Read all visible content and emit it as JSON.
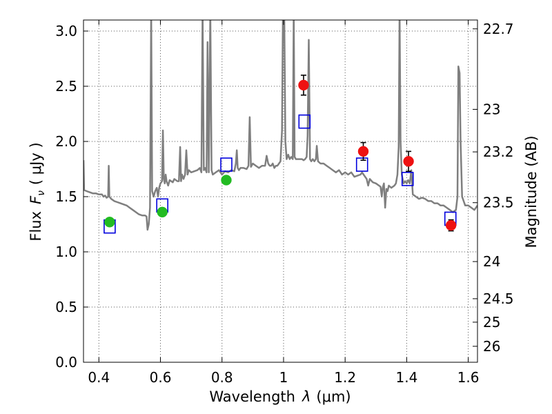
{
  "chart_data": {
    "type": "scatter",
    "title": "",
    "xlabel_pre": "Wavelength",
    "xlabel_lambda": "λ",
    "xlabel_unit": "(μm)",
    "ylabel_pre": "Flux",
    "ylabel_math": "F",
    "ylabel_sub": "ν",
    "ylabel_unit": "( μJy )",
    "ylabel_right": "Magnitude (AB)",
    "xlim": [
      0.35,
      1.63
    ],
    "ylim": [
      0.0,
      3.1
    ],
    "grid": true,
    "legend": "none",
    "x_ticks": [
      {
        "value": 0.4,
        "label": "0.4"
      },
      {
        "value": 0.6,
        "label": "0.6"
      },
      {
        "value": 0.8,
        "label": "0.8"
      },
      {
        "value": 1.0,
        "label": "1"
      },
      {
        "value": 1.2,
        "label": "1.2"
      },
      {
        "value": 1.4,
        "label": "1.4"
      },
      {
        "value": 1.6,
        "label": "1.6"
      }
    ],
    "y_ticks": [
      {
        "value": 0.0,
        "label": "0.0"
      },
      {
        "value": 0.5,
        "label": "0.5"
      },
      {
        "value": 1.0,
        "label": "1.0"
      },
      {
        "value": 1.5,
        "label": "1.5"
      },
      {
        "value": 2.0,
        "label": "2.0"
      },
      {
        "value": 2.5,
        "label": "2.5"
      },
      {
        "value": 3.0,
        "label": "3.0"
      }
    ],
    "right_ticks": [
      {
        "mag": 22.7,
        "label": "22.7"
      },
      {
        "mag": 23.0,
        "label": "23"
      },
      {
        "mag": 23.2,
        "label": "23.2"
      },
      {
        "mag": 23.5,
        "label": "23.5"
      },
      {
        "mag": 24.0,
        "label": "24"
      },
      {
        "mag": 24.5,
        "label": "24.5"
      },
      {
        "mag": 25.0,
        "label": "25"
      },
      {
        "mag": 26.0,
        "label": "26"
      }
    ],
    "colors": {
      "spectrum": "#7f7f7f",
      "green_points": "#22bb22",
      "red_points": "#ee1111",
      "model_squares": "#0000dd",
      "grid": "#555555"
    },
    "series": [
      {
        "kind": "line",
        "color": "#7f7f7f",
        "points": [
          [
            0.35,
            1.83
          ],
          [
            0.352,
            1.56
          ],
          [
            0.36,
            1.55
          ],
          [
            0.37,
            1.54
          ],
          [
            0.38,
            1.53
          ],
          [
            0.39,
            1.53
          ],
          [
            0.4,
            1.52
          ],
          [
            0.41,
            1.52
          ],
          [
            0.415,
            1.5
          ],
          [
            0.42,
            1.51
          ],
          [
            0.425,
            1.49
          ],
          [
            0.43,
            1.5
          ],
          [
            0.432,
            1.78
          ],
          [
            0.434,
            1.5
          ],
          [
            0.44,
            1.48
          ],
          [
            0.45,
            1.46
          ],
          [
            0.46,
            1.45
          ],
          [
            0.47,
            1.44
          ],
          [
            0.48,
            1.43
          ],
          [
            0.49,
            1.42
          ],
          [
            0.5,
            1.4
          ],
          [
            0.51,
            1.38
          ],
          [
            0.52,
            1.36
          ],
          [
            0.53,
            1.34
          ],
          [
            0.54,
            1.33
          ],
          [
            0.55,
            1.33
          ],
          [
            0.555,
            1.32
          ],
          [
            0.558,
            1.2
          ],
          [
            0.562,
            1.25
          ],
          [
            0.566,
            1.4
          ],
          [
            0.57,
            3.2
          ],
          [
            0.573,
            1.55
          ],
          [
            0.578,
            1.5
          ],
          [
            0.583,
            1.55
          ],
          [
            0.588,
            1.58
          ],
          [
            0.592,
            1.5
          ],
          [
            0.596,
            1.58
          ],
          [
            0.6,
            1.62
          ],
          [
            0.605,
            1.64
          ],
          [
            0.608,
            2.1
          ],
          [
            0.611,
            1.66
          ],
          [
            0.614,
            1.62
          ],
          [
            0.617,
            1.7
          ],
          [
            0.62,
            1.64
          ],
          [
            0.625,
            1.6
          ],
          [
            0.63,
            1.65
          ],
          [
            0.64,
            1.63
          ],
          [
            0.645,
            1.66
          ],
          [
            0.65,
            1.65
          ],
          [
            0.655,
            1.64
          ],
          [
            0.66,
            1.64
          ],
          [
            0.664,
            1.95
          ],
          [
            0.667,
            1.64
          ],
          [
            0.67,
            1.7
          ],
          [
            0.675,
            1.66
          ],
          [
            0.68,
            1.7
          ],
          [
            0.684,
            1.92
          ],
          [
            0.688,
            1.7
          ],
          [
            0.692,
            1.74
          ],
          [
            0.7,
            1.72
          ],
          [
            0.71,
            1.73
          ],
          [
            0.72,
            1.74
          ],
          [
            0.728,
            1.76
          ],
          [
            0.733,
            1.72
          ],
          [
            0.737,
            3.2
          ],
          [
            0.741,
            1.74
          ],
          [
            0.745,
            1.76
          ],
          [
            0.75,
            1.72
          ],
          [
            0.753,
            2.9
          ],
          [
            0.757,
            1.72
          ],
          [
            0.762,
            3.2
          ],
          [
            0.766,
            1.74
          ],
          [
            0.77,
            1.7
          ],
          [
            0.78,
            1.72
          ],
          [
            0.79,
            1.74
          ],
          [
            0.8,
            1.7
          ],
          [
            0.81,
            1.73
          ],
          [
            0.82,
            1.72
          ],
          [
            0.83,
            1.74
          ],
          [
            0.84,
            1.73
          ],
          [
            0.845,
            1.8
          ],
          [
            0.848,
            1.92
          ],
          [
            0.851,
            1.76
          ],
          [
            0.855,
            1.74
          ],
          [
            0.86,
            1.76
          ],
          [
            0.87,
            1.76
          ],
          [
            0.88,
            1.75
          ],
          [
            0.886,
            1.78
          ],
          [
            0.89,
            2.22
          ],
          [
            0.894,
            1.77
          ],
          [
            0.9,
            1.8
          ],
          [
            0.91,
            1.78
          ],
          [
            0.92,
            1.76
          ],
          [
            0.93,
            1.78
          ],
          [
            0.94,
            1.78
          ],
          [
            0.945,
            1.87
          ],
          [
            0.95,
            1.8
          ],
          [
            0.955,
            1.78
          ],
          [
            0.96,
            1.78
          ],
          [
            0.965,
            1.8
          ],
          [
            0.97,
            1.76
          ],
          [
            0.975,
            1.78
          ],
          [
            0.98,
            1.78
          ],
          [
            0.985,
            1.8
          ],
          [
            0.99,
            1.82
          ],
          [
            0.995,
            2.1
          ],
          [
            0.998,
            3.2
          ],
          [
            1.002,
            3.2
          ],
          [
            1.006,
            2.0
          ],
          [
            1.01,
            1.84
          ],
          [
            1.015,
            1.88
          ],
          [
            1.02,
            1.84
          ],
          [
            1.025,
            1.86
          ],
          [
            1.03,
            1.84
          ],
          [
            1.033,
            3.2
          ],
          [
            1.036,
            1.86
          ],
          [
            1.04,
            1.84
          ],
          [
            1.05,
            1.84
          ],
          [
            1.06,
            1.84
          ],
          [
            1.065,
            1.83
          ],
          [
            1.07,
            1.84
          ],
          [
            1.075,
            1.86
          ],
          [
            1.078,
            2.05
          ],
          [
            1.082,
            2.92
          ],
          [
            1.086,
            1.84
          ],
          [
            1.09,
            1.82
          ],
          [
            1.095,
            1.84
          ],
          [
            1.1,
            1.82
          ],
          [
            1.105,
            1.84
          ],
          [
            1.108,
            1.96
          ],
          [
            1.112,
            1.82
          ],
          [
            1.12,
            1.8
          ],
          [
            1.13,
            1.8
          ],
          [
            1.14,
            1.78
          ],
          [
            1.15,
            1.76
          ],
          [
            1.16,
            1.74
          ],
          [
            1.17,
            1.72
          ],
          [
            1.18,
            1.74
          ],
          [
            1.19,
            1.7
          ],
          [
            1.2,
            1.72
          ],
          [
            1.21,
            1.7
          ],
          [
            1.22,
            1.72
          ],
          [
            1.23,
            1.68
          ],
          [
            1.24,
            1.69
          ],
          [
            1.25,
            1.7
          ],
          [
            1.255,
            1.72
          ],
          [
            1.26,
            1.7
          ],
          [
            1.27,
            1.66
          ],
          [
            1.275,
            1.6
          ],
          [
            1.28,
            1.66
          ],
          [
            1.29,
            1.63
          ],
          [
            1.3,
            1.62
          ],
          [
            1.31,
            1.6
          ],
          [
            1.315,
            1.59
          ],
          [
            1.319,
            1.5
          ],
          [
            1.322,
            1.58
          ],
          [
            1.326,
            1.62
          ],
          [
            1.33,
            1.4
          ],
          [
            1.334,
            1.57
          ],
          [
            1.338,
            1.55
          ],
          [
            1.342,
            1.6
          ],
          [
            1.35,
            1.58
          ],
          [
            1.36,
            1.6
          ],
          [
            1.365,
            1.62
          ],
          [
            1.37,
            1.7
          ],
          [
            1.374,
            1.95
          ],
          [
            1.377,
            3.2
          ],
          [
            1.38,
            2.0
          ],
          [
            1.384,
            1.7
          ],
          [
            1.39,
            1.62
          ],
          [
            1.395,
            1.64
          ],
          [
            1.4,
            1.62
          ],
          [
            1.405,
            1.65
          ],
          [
            1.41,
            1.62
          ],
          [
            1.415,
            1.74
          ],
          [
            1.42,
            1.52
          ],
          [
            1.43,
            1.5
          ],
          [
            1.44,
            1.48
          ],
          [
            1.45,
            1.49
          ],
          [
            1.46,
            1.48
          ],
          [
            1.47,
            1.46
          ],
          [
            1.48,
            1.46
          ],
          [
            1.49,
            1.44
          ],
          [
            1.5,
            1.44
          ],
          [
            1.51,
            1.42
          ],
          [
            1.52,
            1.42
          ],
          [
            1.53,
            1.4
          ],
          [
            1.54,
            1.38
          ],
          [
            1.55,
            1.36
          ],
          [
            1.56,
            1.38
          ],
          [
            1.565,
            1.5
          ],
          [
            1.568,
            2.68
          ],
          [
            1.572,
            2.62
          ],
          [
            1.575,
            2.0
          ],
          [
            1.58,
            1.5
          ],
          [
            1.59,
            1.42
          ],
          [
            1.6,
            1.42
          ],
          [
            1.61,
            1.4
          ],
          [
            1.62,
            1.38
          ],
          [
            1.63,
            1.42
          ]
        ]
      },
      {
        "kind": "photometry",
        "color": "#22bb22",
        "points": [
          {
            "x": 0.435,
            "y": 1.27,
            "err": 0.03
          },
          {
            "x": 0.606,
            "y": 1.36,
            "err": 0.03
          },
          {
            "x": 0.814,
            "y": 1.65,
            "err": 0.03
          }
        ]
      },
      {
        "kind": "photometry",
        "color": "#ee1111",
        "points": [
          {
            "x": 1.065,
            "y": 2.51,
            "err": 0.09
          },
          {
            "x": 1.259,
            "y": 1.91,
            "err": 0.08
          },
          {
            "x": 1.406,
            "y": 1.82,
            "err": 0.09
          },
          {
            "x": 1.544,
            "y": 1.24,
            "err": 0.05
          }
        ]
      },
      {
        "kind": "model-squares",
        "color": "#0000dd",
        "points": [
          {
            "x": 0.435,
            "y": 1.23
          },
          {
            "x": 0.606,
            "y": 1.42
          },
          {
            "x": 0.814,
            "y": 1.79
          },
          {
            "x": 1.068,
            "y": 2.18
          },
          {
            "x": 1.255,
            "y": 1.79
          },
          {
            "x": 1.403,
            "y": 1.66
          },
          {
            "x": 1.542,
            "y": 1.3
          }
        ]
      }
    ]
  }
}
